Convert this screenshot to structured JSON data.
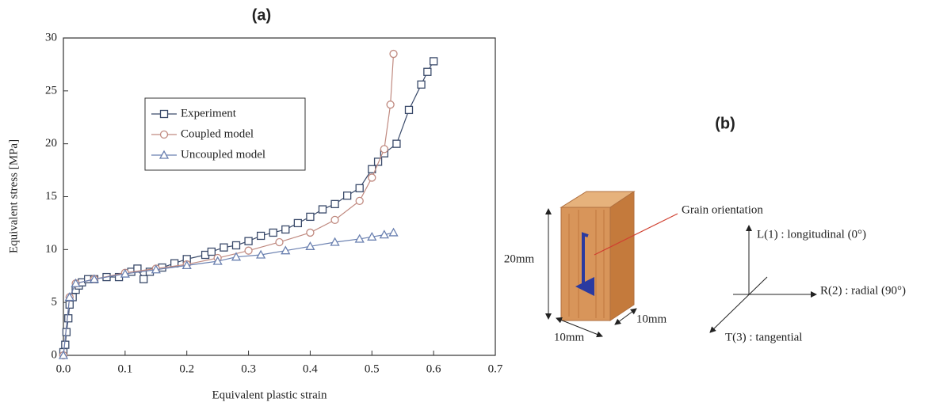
{
  "chart_data": {
    "type": "line",
    "title": "(a)",
    "xlabel": "Equivalent plastic strain",
    "ylabel": "Equivalent stress [MPa]",
    "xlim": [
      0,
      0.7
    ],
    "ylim": [
      0,
      30
    ],
    "xticks": [
      {
        "value": 0,
        "label": "0.0"
      },
      0.1,
      0.2,
      0.3,
      0.4,
      0.5,
      0.6,
      0.7
    ],
    "yticks": [
      0,
      5,
      10,
      15,
      20,
      25,
      30
    ],
    "legend": "upper left",
    "series": [
      {
        "name": "Experiment",
        "color": "#3a4a6a",
        "marker": "square",
        "x": [
          0.0,
          0.003,
          0.005,
          0.008,
          0.01,
          0.015,
          0.02,
          0.025,
          0.03,
          0.04,
          0.05,
          0.07,
          0.09,
          0.11,
          0.12,
          0.13,
          0.14,
          0.16,
          0.18,
          0.2,
          0.23,
          0.24,
          0.26,
          0.28,
          0.3,
          0.32,
          0.34,
          0.36,
          0.38,
          0.4,
          0.42,
          0.44,
          0.46,
          0.48,
          0.5,
          0.51,
          0.52,
          0.54,
          0.56,
          0.58,
          0.59,
          0.6
        ],
        "values": [
          0.3,
          1,
          2.2,
          3.5,
          4.8,
          5.5,
          6.2,
          6.6,
          6.9,
          7.2,
          7.2,
          7.4,
          7.4,
          7.9,
          8.2,
          7.2,
          7.9,
          8.3,
          8.7,
          9.1,
          9.5,
          9.8,
          10.2,
          10.4,
          10.8,
          11.3,
          11.6,
          11.9,
          12.5,
          13.1,
          13.8,
          14.3,
          15.1,
          15.8,
          17.6,
          18.3,
          19.1,
          20,
          23.2,
          25.6,
          26.8,
          27.8
        ]
      },
      {
        "name": "Coupled model",
        "color": "#c08a80",
        "marker": "circle",
        "x": [
          0,
          0.01,
          0.02,
          0.05,
          0.1,
          0.15,
          0.2,
          0.25,
          0.3,
          0.35,
          0.4,
          0.44,
          0.48,
          0.5,
          0.52,
          0.53,
          0.535
        ],
        "values": [
          0,
          5.5,
          6.8,
          7.2,
          7.8,
          8.2,
          8.6,
          9.2,
          9.9,
          10.7,
          11.6,
          12.8,
          14.6,
          16.8,
          19.5,
          23.7,
          28.5
        ]
      },
      {
        "name": "Uncoupled model",
        "color": "#6a80b0",
        "marker": "triangle",
        "x": [
          0,
          0.01,
          0.02,
          0.05,
          0.1,
          0.15,
          0.2,
          0.25,
          0.28,
          0.32,
          0.36,
          0.4,
          0.44,
          0.48,
          0.5,
          0.52,
          0.535
        ],
        "values": [
          0,
          5.5,
          6.8,
          7.2,
          7.7,
          8.1,
          8.5,
          8.9,
          9.3,
          9.5,
          9.9,
          10.3,
          10.7,
          11,
          11.2,
          11.4,
          11.6
        ]
      }
    ]
  },
  "diagram": {
    "title": "(b)",
    "grain_label": "Grain orientation",
    "height_label": "20mm",
    "width_label": "10mm",
    "depth_label": "10mm",
    "axis_l": "L(1) : longitudinal (0°)",
    "axis_r": "R(2) : radial (90°)",
    "axis_t": "T(3) : tangential"
  }
}
